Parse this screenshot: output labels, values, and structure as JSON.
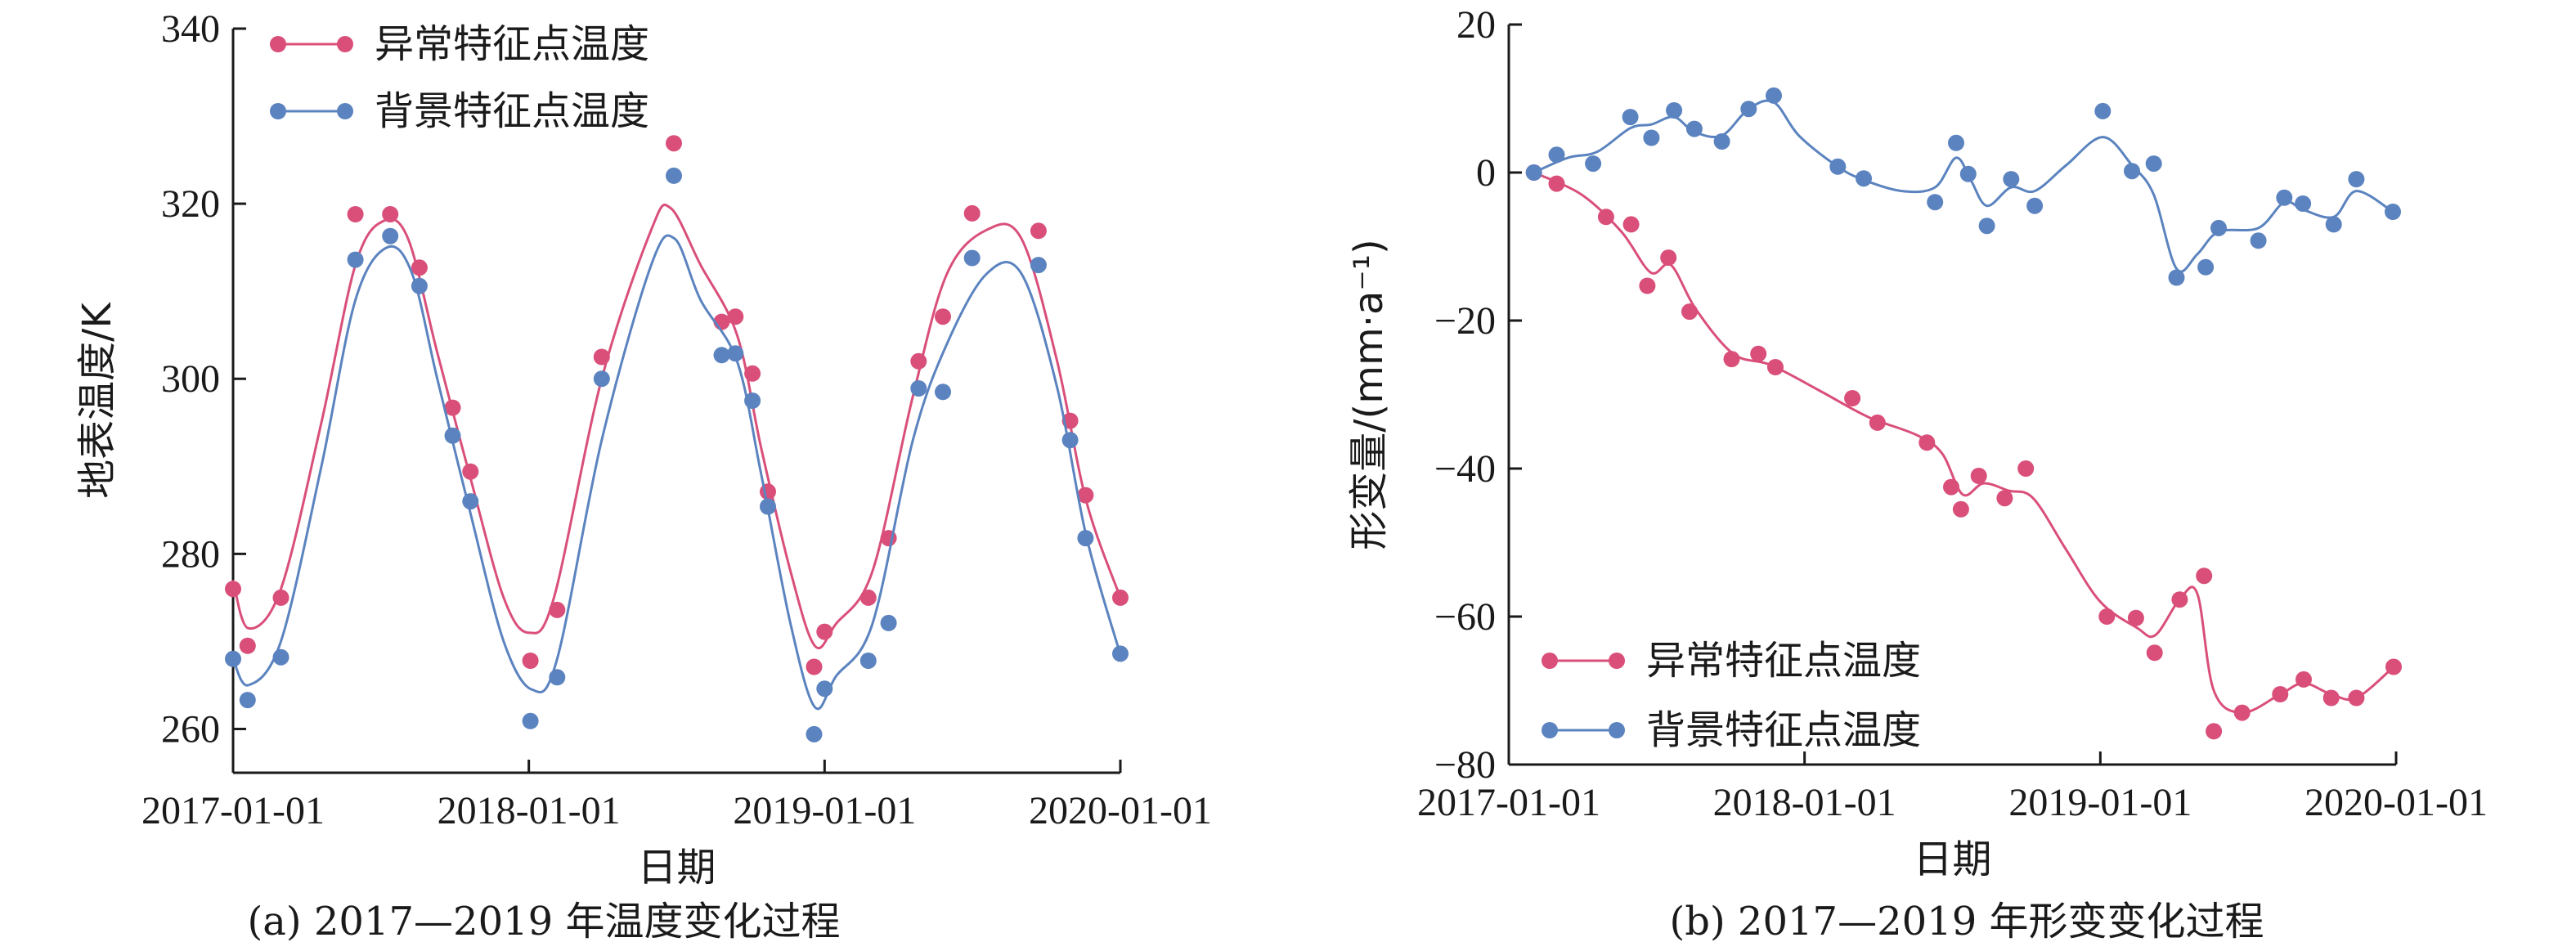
{
  "colors": {
    "anomaly": "#d94f7a",
    "background": "#5b83bf",
    "axis": "#1a1a1a"
  },
  "chart_data": [
    {
      "type": "line",
      "caption": "(a) 2017—2019 年温度变化过程",
      "xlabel": "日期",
      "ylabel": "地表温度/K",
      "xticks": [
        "2017-01-01",
        "2018-01-01",
        "2019-01-01",
        "2020-01-01"
      ],
      "xlim": [
        "2017-01-01",
        "2020-01-01"
      ],
      "ylim": [
        255,
        340
      ],
      "yticks": [
        260,
        280,
        300,
        320,
        340
      ],
      "legend_position": "top-left",
      "series": [
        {
          "name": "异常特征点温度",
          "color": "#d94f7a",
          "points": [
            [
              "2017-01-01",
              276.0
            ],
            [
              "2017-01-19",
              269.5
            ],
            [
              "2017-03-01",
              275.0
            ],
            [
              "2017-06-01",
              318.8
            ],
            [
              "2017-07-14",
              318.8
            ],
            [
              "2017-08-19",
              312.7
            ],
            [
              "2017-09-29",
              296.7
            ],
            [
              "2017-10-21",
              289.4
            ],
            [
              "2018-01-03",
              267.8
            ],
            [
              "2018-02-05",
              273.6
            ],
            [
              "2018-04-01",
              302.5
            ],
            [
              "2018-06-29",
              326.9
            ],
            [
              "2018-08-27",
              306.5
            ],
            [
              "2018-09-13",
              307.1
            ],
            [
              "2018-10-04",
              300.6
            ],
            [
              "2018-10-23",
              287.1
            ],
            [
              "2018-12-19",
              267.1
            ],
            [
              "2019-01-01",
              271.1
            ],
            [
              "2019-02-24",
              275.0
            ],
            [
              "2019-03-21",
              281.8
            ],
            [
              "2019-04-27",
              302.0
            ],
            [
              "2019-05-27",
              307.1
            ],
            [
              "2019-07-02",
              318.9
            ],
            [
              "2019-09-22",
              316.9
            ],
            [
              "2019-10-31",
              295.2
            ],
            [
              "2019-11-19",
              286.7
            ],
            [
              "2020-01-01",
              275.0
            ]
          ],
          "curve": [
            [
              "2017-01-01",
              277.0
            ],
            [
              "2017-01-20",
              271.5
            ],
            [
              "2017-03-01",
              276.0
            ],
            [
              "2017-04-20",
              295.0
            ],
            [
              "2017-06-01",
              313.0
            ],
            [
              "2017-07-05",
              318.0
            ],
            [
              "2017-08-05",
              316.0
            ],
            [
              "2017-09-10",
              303.0
            ],
            [
              "2017-10-20",
              289.0
            ],
            [
              "2017-12-01",
              275.0
            ],
            [
              "2018-01-01",
              271.0
            ],
            [
              "2018-02-01",
              275.0
            ],
            [
              "2018-04-01",
              300.0
            ],
            [
              "2018-06-01",
              317.0
            ],
            [
              "2018-06-25",
              319.5
            ],
            [
              "2018-08-01",
              313.0
            ],
            [
              "2018-09-15",
              305.0
            ],
            [
              "2018-10-15",
              292.0
            ],
            [
              "2018-11-20",
              278.0
            ],
            [
              "2018-12-20",
              269.5
            ],
            [
              "2019-01-15",
              272.0
            ],
            [
              "2019-03-01",
              278.0
            ],
            [
              "2019-04-20",
              298.0
            ],
            [
              "2019-06-01",
              312.0
            ],
            [
              "2019-07-20",
              317.0
            ],
            [
              "2019-09-01",
              316.0
            ],
            [
              "2019-10-15",
              302.0
            ],
            [
              "2019-11-20",
              286.0
            ],
            [
              "2020-01-01",
              275.0
            ]
          ]
        },
        {
          "name": "背景特征点温度",
          "color": "#5b83bf",
          "points": [
            [
              "2017-01-01",
              268.0
            ],
            [
              "2017-01-19",
              263.3
            ],
            [
              "2017-03-01",
              268.2
            ],
            [
              "2017-06-01",
              313.6
            ],
            [
              "2017-07-14",
              316.3
            ],
            [
              "2017-08-19",
              310.6
            ],
            [
              "2017-09-29",
              293.5
            ],
            [
              "2017-10-21",
              286.0
            ],
            [
              "2018-01-03",
              260.9
            ],
            [
              "2018-02-05",
              265.9
            ],
            [
              "2018-04-01",
              300.0
            ],
            [
              "2018-06-29",
              323.2
            ],
            [
              "2018-08-27",
              302.7
            ],
            [
              "2018-09-13",
              302.9
            ],
            [
              "2018-10-04",
              297.5
            ],
            [
              "2018-10-23",
              285.4
            ],
            [
              "2018-12-19",
              259.4
            ],
            [
              "2019-01-01",
              264.6
            ],
            [
              "2019-02-24",
              267.8
            ],
            [
              "2019-03-21",
              272.1
            ],
            [
              "2019-04-27",
              298.9
            ],
            [
              "2019-05-27",
              298.5
            ],
            [
              "2019-07-02",
              313.8
            ],
            [
              "2019-09-22",
              313.0
            ],
            [
              "2019-10-31",
              293.0
            ],
            [
              "2019-11-19",
              281.8
            ],
            [
              "2020-01-01",
              268.6
            ]
          ],
          "curve": [
            [
              "2017-01-01",
              268.0
            ],
            [
              "2017-01-20",
              265.0
            ],
            [
              "2017-03-01",
              270.0
            ],
            [
              "2017-04-20",
              290.0
            ],
            [
              "2017-06-01",
              309.0
            ],
            [
              "2017-07-10",
              315.0
            ],
            [
              "2017-08-10",
              312.0
            ],
            [
              "2017-09-10",
              300.0
            ],
            [
              "2017-10-20",
              285.0
            ],
            [
              "2017-12-01",
              270.0
            ],
            [
              "2018-01-05",
              264.5
            ],
            [
              "2018-02-05",
              268.0
            ],
            [
              "2018-04-01",
              293.0
            ],
            [
              "2018-06-01",
              313.0
            ],
            [
              "2018-06-30",
              316.0
            ],
            [
              "2018-08-01",
              309.0
            ],
            [
              "2018-09-15",
              302.0
            ],
            [
              "2018-10-15",
              289.0
            ],
            [
              "2018-11-20",
              272.0
            ],
            [
              "2018-12-20",
              262.5
            ],
            [
              "2019-01-15",
              266.0
            ],
            [
              "2019-03-01",
              272.0
            ],
            [
              "2019-04-20",
              293.0
            ],
            [
              "2019-06-01",
              304.0
            ],
            [
              "2019-07-20",
              312.0
            ],
            [
              "2019-09-01",
              312.0
            ],
            [
              "2019-10-15",
              299.0
            ],
            [
              "2019-11-20",
              282.0
            ],
            [
              "2020-01-01",
              268.5
            ]
          ]
        }
      ]
    },
    {
      "type": "line",
      "caption": "(b) 2017—2019 年形变变化过程",
      "xlabel": "日期",
      "ylabel": "形变量/(mm·a⁻¹)",
      "xticks": [
        "2017-01-01",
        "2018-01-01",
        "2019-01-01",
        "2020-01-01"
      ],
      "xlim": [
        "2017-01-01",
        "2020-01-01"
      ],
      "ylim": [
        -80,
        20
      ],
      "yticks": [
        -80,
        -60,
        -40,
        -20,
        0,
        20
      ],
      "ytick_labels": [
        "−80",
        "−60",
        "−40",
        "−20",
        "0",
        "20"
      ],
      "legend_position": "bottom-left",
      "series": [
        {
          "name": "异常特征点温度",
          "color": "#d94f7a",
          "points": [
            [
              "2017-02-01",
              0.0
            ],
            [
              "2017-03-01",
              -1.5
            ],
            [
              "2017-05-01",
              -6.0
            ],
            [
              "2017-06-01",
              -7.0
            ],
            [
              "2017-06-21",
              -15.3
            ],
            [
              "2017-07-17",
              -11.5
            ],
            [
              "2017-08-12",
              -18.8
            ],
            [
              "2017-10-03",
              -25.2
            ],
            [
              "2017-11-05",
              -24.5
            ],
            [
              "2017-11-26",
              -26.3
            ],
            [
              "2018-03-01",
              -30.5
            ],
            [
              "2018-04-01",
              -33.8
            ],
            [
              "2018-06-01",
              -36.5
            ],
            [
              "2018-07-01",
              -42.5
            ],
            [
              "2018-07-13",
              -45.5
            ],
            [
              "2018-08-04",
              -41.0
            ],
            [
              "2018-09-05",
              -44.0
            ],
            [
              "2018-10-01",
              -40.0
            ],
            [
              "2019-01-09",
              -60.0
            ],
            [
              "2019-02-14",
              -60.2
            ],
            [
              "2019-03-09",
              -64.9
            ],
            [
              "2019-04-09",
              -57.7
            ],
            [
              "2019-05-09",
              -54.5
            ],
            [
              "2019-05-21",
              -75.5
            ],
            [
              "2019-06-25",
              -73.0
            ],
            [
              "2019-08-11",
              -70.5
            ],
            [
              "2019-09-09",
              -68.5
            ],
            [
              "2019-10-13",
              -71.0
            ],
            [
              "2019-11-13",
              -71.0
            ],
            [
              "2019-12-29",
              -66.8
            ]
          ],
          "curve": [
            [
              "2017-02-01",
              0.0
            ],
            [
              "2017-04-01",
              -3.0
            ],
            [
              "2017-05-20",
              -8.0
            ],
            [
              "2017-06-25",
              -13.5
            ],
            [
              "2017-07-20",
              -12.5
            ],
            [
              "2017-08-20",
              -18.5
            ],
            [
              "2017-10-05",
              -24.5
            ],
            [
              "2017-11-20",
              -26.0
            ],
            [
              "2018-01-20",
              -29.5
            ],
            [
              "2018-03-20",
              -33.0
            ],
            [
              "2018-05-20",
              -35.5
            ],
            [
              "2018-06-20",
              -38.0
            ],
            [
              "2018-07-15",
              -43.5
            ],
            [
              "2018-08-10",
              -42.0
            ],
            [
              "2018-09-10",
              -43.0
            ],
            [
              "2018-10-10",
              -44.0
            ],
            [
              "2018-11-20",
              -51.0
            ],
            [
              "2019-01-01",
              -58.0
            ],
            [
              "2019-02-15",
              -61.5
            ],
            [
              "2019-03-10",
              -62.5
            ],
            [
              "2019-04-10",
              -57.5
            ],
            [
              "2019-05-01",
              -57.0
            ],
            [
              "2019-05-21",
              -70.0
            ],
            [
              "2019-06-25",
              -73.0
            ],
            [
              "2019-08-11",
              -70.5
            ],
            [
              "2019-09-09",
              -69.0
            ],
            [
              "2019-10-13",
              -70.5
            ],
            [
              "2019-11-13",
              -71.0
            ],
            [
              "2019-12-29",
              -66.8
            ]
          ]
        },
        {
          "name": "背景特征点温度",
          "color": "#5b83bf",
          "points": [
            [
              "2017-02-01",
              0.0
            ],
            [
              "2017-03-01",
              2.4
            ],
            [
              "2017-04-15",
              1.2
            ],
            [
              "2017-05-31",
              7.5
            ],
            [
              "2017-06-26",
              4.7
            ],
            [
              "2017-07-24",
              8.4
            ],
            [
              "2017-08-18",
              5.9
            ],
            [
              "2017-09-21",
              4.2
            ],
            [
              "2017-10-24",
              8.6
            ],
            [
              "2017-11-24",
              10.4
            ],
            [
              "2018-02-11",
              0.8
            ],
            [
              "2018-03-15",
              -0.8
            ],
            [
              "2018-06-11",
              -4.0
            ],
            [
              "2018-07-07",
              4.0
            ],
            [
              "2018-07-22",
              -0.2
            ],
            [
              "2018-08-14",
              -7.2
            ],
            [
              "2018-09-13",
              -0.9
            ],
            [
              "2018-10-12",
              -4.5
            ],
            [
              "2019-01-04",
              8.3
            ],
            [
              "2019-02-09",
              0.2
            ],
            [
              "2019-03-08",
              1.2
            ],
            [
              "2019-04-05",
              -14.2
            ],
            [
              "2019-05-11",
              -12.8
            ],
            [
              "2019-05-27",
              -7.5
            ],
            [
              "2019-07-15",
              -9.2
            ],
            [
              "2019-08-16",
              -3.4
            ],
            [
              "2019-09-08",
              -4.2
            ],
            [
              "2019-10-16",
              -7.0
            ],
            [
              "2019-11-13",
              -0.9
            ],
            [
              "2019-12-28",
              -5.3
            ]
          ],
          "curve": [
            [
              "2017-02-01",
              0.0
            ],
            [
              "2017-03-15",
              2.0
            ],
            [
              "2017-04-20",
              2.8
            ],
            [
              "2017-05-31",
              6.0
            ],
            [
              "2017-06-26",
              6.5
            ],
            [
              "2017-07-24",
              7.5
            ],
            [
              "2017-08-18",
              5.5
            ],
            [
              "2017-09-21",
              5.0
            ],
            [
              "2017-10-24",
              8.6
            ],
            [
              "2017-11-24",
              9.5
            ],
            [
              "2017-12-25",
              5.0
            ],
            [
              "2018-02-11",
              0.8
            ],
            [
              "2018-03-15",
              -1.0
            ],
            [
              "2018-05-01",
              -2.5
            ],
            [
              "2018-06-11",
              -2.0
            ],
            [
              "2018-07-07",
              2.0
            ],
            [
              "2018-07-25",
              -1.0
            ],
            [
              "2018-08-14",
              -4.5
            ],
            [
              "2018-09-13",
              -2.0
            ],
            [
              "2018-10-12",
              -2.5
            ],
            [
              "2018-11-20",
              1.0
            ],
            [
              "2019-01-04",
              4.8
            ],
            [
              "2019-02-09",
              1.0
            ],
            [
              "2019-03-08",
              -3.0
            ],
            [
              "2019-04-05",
              -13.0
            ],
            [
              "2019-05-01",
              -11.0
            ],
            [
              "2019-05-27",
              -8.0
            ],
            [
              "2019-07-15",
              -7.5
            ],
            [
              "2019-08-16",
              -4.0
            ],
            [
              "2019-09-08",
              -5.0
            ],
            [
              "2019-10-16",
              -6.0
            ],
            [
              "2019-11-13",
              -2.5
            ],
            [
              "2019-12-28",
              -5.3
            ]
          ]
        }
      ]
    }
  ]
}
